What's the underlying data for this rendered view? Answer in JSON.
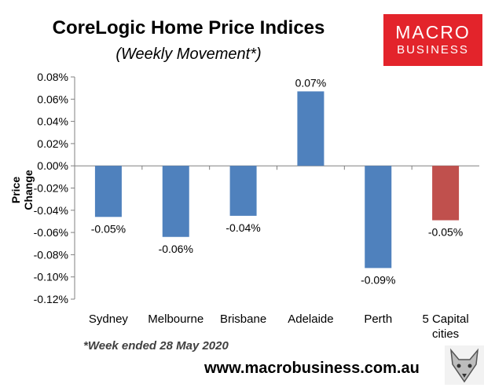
{
  "title": "CoreLogic Home Price Indices",
  "subtitle": "(Weekly Movement*)",
  "logo": {
    "top": "MACRO",
    "bottom": "BUSINESS",
    "color": "#e3242b"
  },
  "footnote": "*Week ended 28 May 2020",
  "website": "www.macrobusiness.com.au",
  "chart_data": {
    "type": "bar",
    "ylabel": "Price Change",
    "ylim": [
      -0.12,
      0.08
    ],
    "yticks": [
      "0.08%",
      "0.06%",
      "0.04%",
      "0.02%",
      "0.00%",
      "-0.02%",
      "-0.04%",
      "-0.06%",
      "-0.08%",
      "-0.10%",
      "-0.12%"
    ],
    "categories": [
      "Sydney",
      "Melbourne",
      "Brisbane",
      "Adelaide",
      "Perth",
      "5 Capital cities"
    ],
    "values": [
      -0.046,
      -0.064,
      -0.045,
      0.067,
      -0.092,
      -0.049
    ],
    "data_labels": [
      "-0.05%",
      "-0.06%",
      "-0.04%",
      "0.07%",
      "-0.09%",
      "-0.05%"
    ],
    "colors": [
      "#4f81bd",
      "#4f81bd",
      "#4f81bd",
      "#4f81bd",
      "#4f81bd",
      "#c0504d"
    ],
    "grid": false,
    "legend": "none"
  }
}
